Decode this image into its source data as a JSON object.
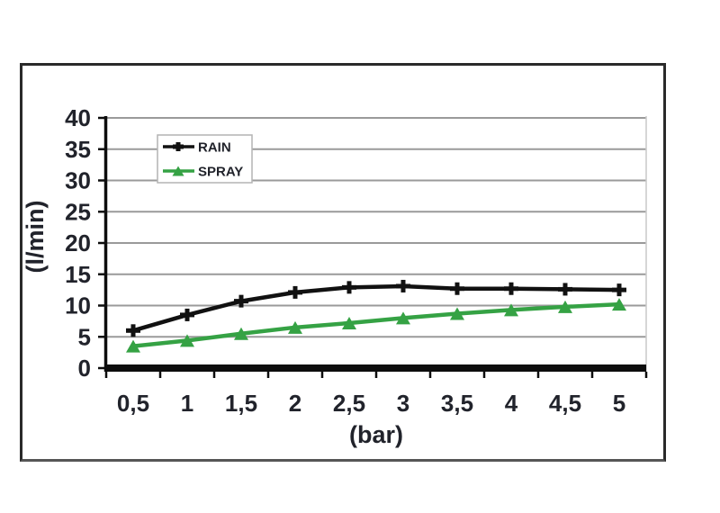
{
  "chart_data": {
    "type": "line",
    "x": [
      0.5,
      1,
      1.5,
      2,
      2.5,
      3,
      3.5,
      4,
      4.5,
      5
    ],
    "x_tick_labels": [
      "0,5",
      "1",
      "1,5",
      "2",
      "2,5",
      "3",
      "3,5",
      "4",
      "4,5",
      "5"
    ],
    "xlabel": "(bar)",
    "ylabel": "(l/min)",
    "ylim": [
      0,
      40
    ],
    "y_ticks": [
      0,
      5,
      10,
      15,
      20,
      25,
      30,
      35,
      40
    ],
    "grid": true,
    "legend_position": "top-left",
    "series": [
      {
        "name": "RAIN",
        "marker": "plus",
        "color": "#111111",
        "values": [
          6.0,
          8.5,
          10.7,
          12.1,
          12.9,
          13.1,
          12.7,
          12.7,
          12.6,
          12.5
        ]
      },
      {
        "name": "SPRAY",
        "marker": "triangle",
        "color": "#35a244",
        "values": [
          3.5,
          4.4,
          5.5,
          6.5,
          7.2,
          8.0,
          8.7,
          9.3,
          9.8,
          10.2
        ]
      }
    ]
  },
  "colors": {
    "gridline": "#9a9a9a",
    "axis": "#0d0d0d",
    "plot_right_edge": "#c9c9c9",
    "legend_border": "#b4b4b4",
    "text": "#21232b",
    "frame_border": "#2a2a2a",
    "background": "#ffffff"
  }
}
